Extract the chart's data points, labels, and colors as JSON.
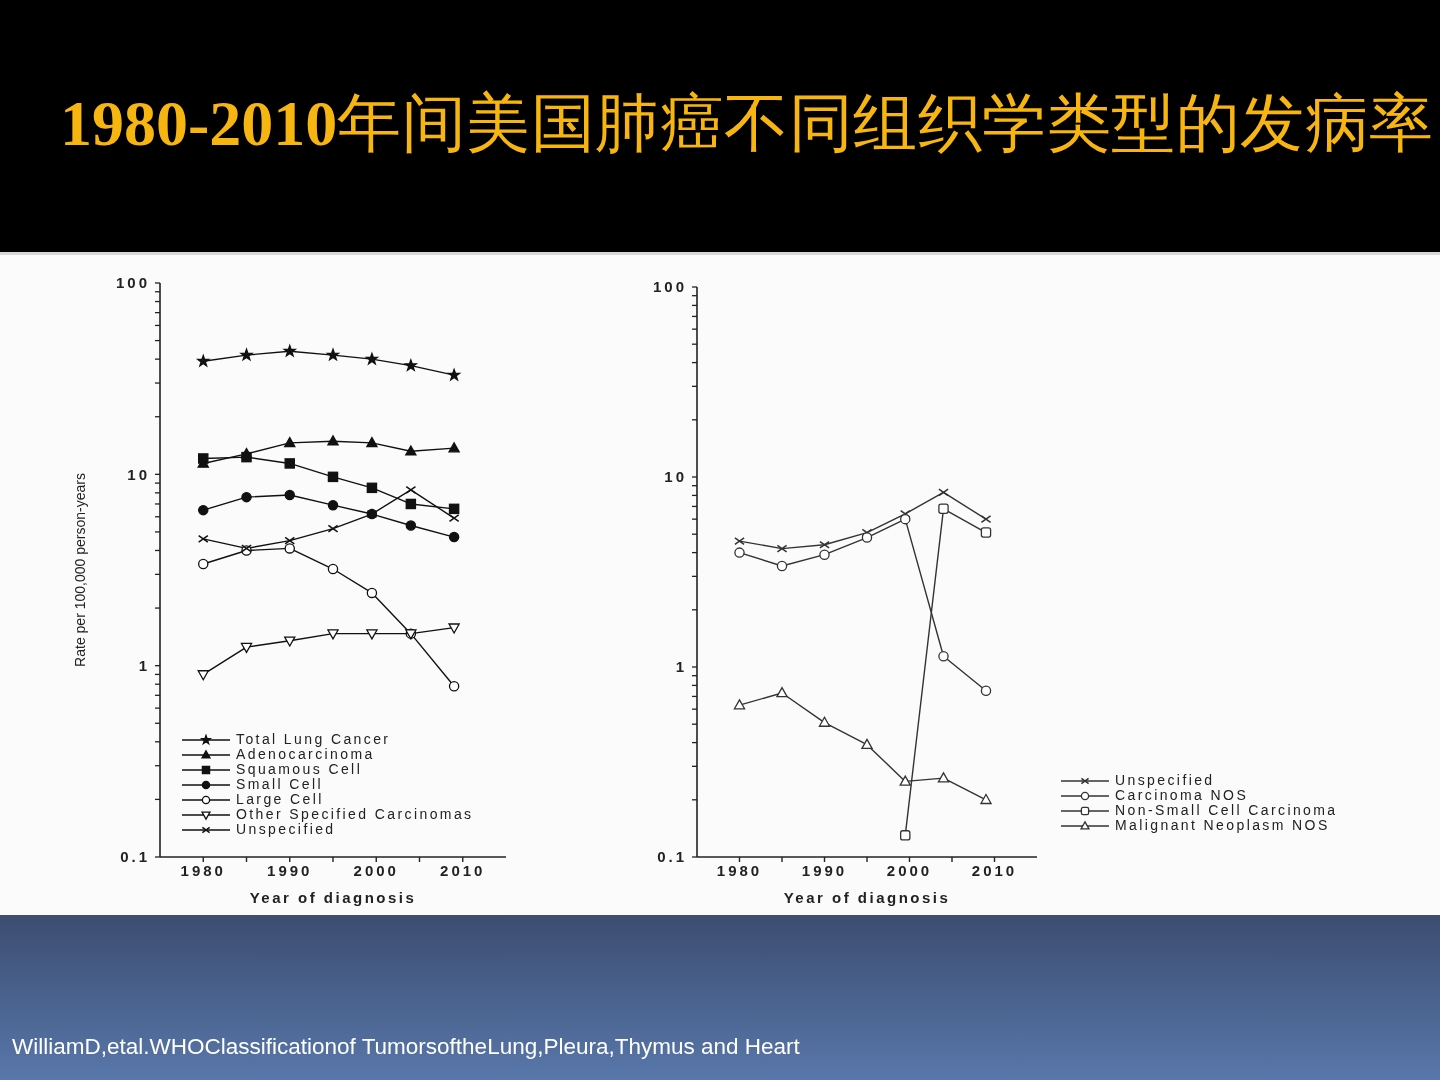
{
  "chart_data": [
    {
      "type": "line",
      "title": "1980-2010年间美国肺癌不同组织学类型的发病率",
      "xlabel": "Year of diagnosis",
      "ylabel": "Rate per 100,000 person-years",
      "annotations": [
        "WilliamD,etal.WHOClassificationof TumorsoftheLung,Pleura,Thymus and Heart"
      ],
      "x": [
        1980,
        1985,
        1990,
        1995,
        1999.5,
        2004,
        2009
      ],
      "xlim": [
        1975,
        2015
      ],
      "xticks": [
        1980,
        {
          "value": 1985,
          "label": null
        },
        1990,
        {
          "value": 1995,
          "label": null
        },
        2000,
        {
          "value": 2005,
          "label": null
        },
        2010
      ],
      "ylim": [
        0.1,
        100
      ],
      "yticks": [
        0.1,
        {
          "value": 0.2,
          "label": null
        },
        {
          "value": 0.3,
          "label": null
        },
        {
          "value": 0.4,
          "label": null
        },
        {
          "value": 0.5,
          "label": null
        },
        {
          "value": 0.6,
          "label": null
        },
        {
          "value": 0.7,
          "label": null
        },
        {
          "value": 0.8,
          "label": null
        },
        {
          "value": 0.9,
          "label": null
        },
        1,
        {
          "value": 2,
          "label": null
        },
        {
          "value": 3,
          "label": null
        },
        {
          "value": 4,
          "label": null
        },
        {
          "value": 5,
          "label": null
        },
        {
          "value": 6,
          "label": null
        },
        {
          "value": 7,
          "label": null
        },
        {
          "value": 8,
          "label": null
        },
        {
          "value": 9,
          "label": null
        },
        10,
        {
          "value": 20,
          "label": null
        },
        {
          "value": 30,
          "label": null
        },
        {
          "value": 40,
          "label": null
        },
        {
          "value": 50,
          "label": null
        },
        {
          "value": 60,
          "label": null
        },
        {
          "value": 70,
          "label": null
        },
        {
          "value": 80,
          "label": null
        },
        {
          "value": 90,
          "label": null
        },
        100
      ],
      "log": "y",
      "legend": "bottom left",
      "line_style": "solid",
      "series": [
        {
          "name": "Total Lung Cancer",
          "color": "#111111",
          "marker": "star",
          "values": [
            39,
            42,
            44,
            42,
            40,
            37,
            33
          ]
        },
        {
          "name": "Adenocarcinoma",
          "color": "#111111",
          "marker": "triangle",
          "values": [
            11.4,
            12.8,
            14.6,
            14.9,
            14.6,
            13.2,
            13.7
          ]
        },
        {
          "name": "Squamous Cell",
          "color": "#111111",
          "marker": "square",
          "values": [
            12.1,
            12.3,
            11.4,
            9.7,
            8.5,
            7.0,
            6.6
          ]
        },
        {
          "name": "Small Cell",
          "color": "#111111",
          "marker": "circle",
          "values": [
            6.5,
            7.6,
            7.8,
            6.9,
            6.2,
            5.4,
            4.7
          ]
        },
        {
          "name": "Large Cell",
          "color": "#111111",
          "marker": "circle-open",
          "values": [
            3.4,
            4.0,
            4.1,
            3.2,
            2.4,
            1.47,
            0.78
          ]
        },
        {
          "name": "Other Specified Carcinomas",
          "color": "#111111",
          "marker": "triangle-down-open",
          "values": [
            0.9,
            1.25,
            1.35,
            1.47,
            1.47,
            1.47,
            1.58
          ]
        },
        {
          "name": "Unspecified",
          "color": "#111111",
          "marker": "cross",
          "values": [
            4.6,
            4.1,
            4.5,
            5.2,
            6.2,
            8.3,
            5.9
          ]
        }
      ]
    },
    {
      "type": "line",
      "xlabel": "Year of diagnosis",
      "x": [
        1980,
        1985,
        1990,
        1995,
        1999.5,
        2004,
        2009
      ],
      "xlim": [
        1975,
        2015
      ],
      "xticks": [
        1980,
        {
          "value": 1985,
          "label": null
        },
        1990,
        {
          "value": 1995,
          "label": null
        },
        2000,
        {
          "value": 2005,
          "label": null
        },
        2010
      ],
      "ylim": [
        0.1,
        100
      ],
      "yticks": [
        0.1,
        {
          "value": 0.2,
          "label": null
        },
        {
          "value": 0.3,
          "label": null
        },
        {
          "value": 0.4,
          "label": null
        },
        {
          "value": 0.5,
          "label": null
        },
        {
          "value": 0.6,
          "label": null
        },
        {
          "value": 0.7,
          "label": null
        },
        {
          "value": 0.8,
          "label": null
        },
        {
          "value": 0.9,
          "label": null
        },
        1,
        {
          "value": 2,
          "label": null
        },
        {
          "value": 3,
          "label": null
        },
        {
          "value": 4,
          "label": null
        },
        {
          "value": 5,
          "label": null
        },
        {
          "value": 6,
          "label": null
        },
        {
          "value": 7,
          "label": null
        },
        {
          "value": 8,
          "label": null
        },
        {
          "value": 9,
          "label": null
        },
        10,
        {
          "value": 20,
          "label": null
        },
        {
          "value": 30,
          "label": null
        },
        {
          "value": 40,
          "label": null
        },
        {
          "value": 50,
          "label": null
        },
        {
          "value": 60,
          "label": null
        },
        {
          "value": 70,
          "label": null
        },
        {
          "value": 80,
          "label": null
        },
        {
          "value": 90,
          "label": null
        },
        100
      ],
      "log": "y",
      "legend": "bottom right",
      "line_style": "solid",
      "series": [
        {
          "name": "Unspecified",
          "color": "#333333",
          "marker": "cross",
          "values": [
            4.6,
            4.2,
            4.4,
            5.1,
            6.4,
            8.3,
            6.0
          ]
        },
        {
          "name": "Carcinoma NOS",
          "color": "#333333",
          "marker": "circle-open",
          "values": [
            4.0,
            3.4,
            3.9,
            4.8,
            6.0,
            1.14,
            0.75
          ]
        },
        {
          "name": "Non-Small Cell Carcinoma",
          "color": "#333333",
          "marker": "square-open",
          "values": [
            null,
            null,
            null,
            null,
            0.13,
            6.8,
            5.1
          ]
        },
        {
          "name": "Malignant Neoplasm NOS",
          "color": "#333333",
          "marker": "triangle-open",
          "values": [
            0.63,
            0.73,
            0.51,
            0.39,
            0.25,
            0.26,
            0.2
          ]
        }
      ]
    }
  ]
}
